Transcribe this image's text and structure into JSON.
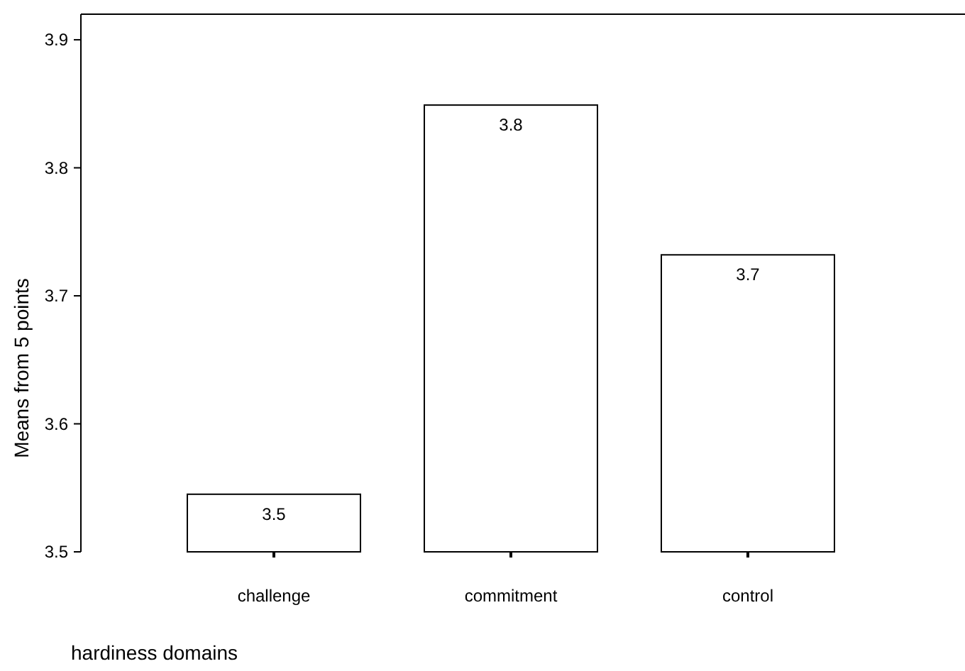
{
  "chart_data": {
    "type": "bar",
    "xlabel": "hardiness domains",
    "ylabel": "Means from 5 points",
    "categories": [
      "challenge",
      "commitment",
      "control"
    ],
    "values": [
      3.545,
      3.849,
      3.732
    ],
    "value_labels": [
      "3.5",
      "3.8",
      "3.7"
    ],
    "color": "#ffffff",
    "ylim": [
      3.5,
      3.92
    ],
    "yticks": [
      3.5,
      3.6,
      3.7,
      3.8,
      3.9
    ],
    "grid": false
  }
}
